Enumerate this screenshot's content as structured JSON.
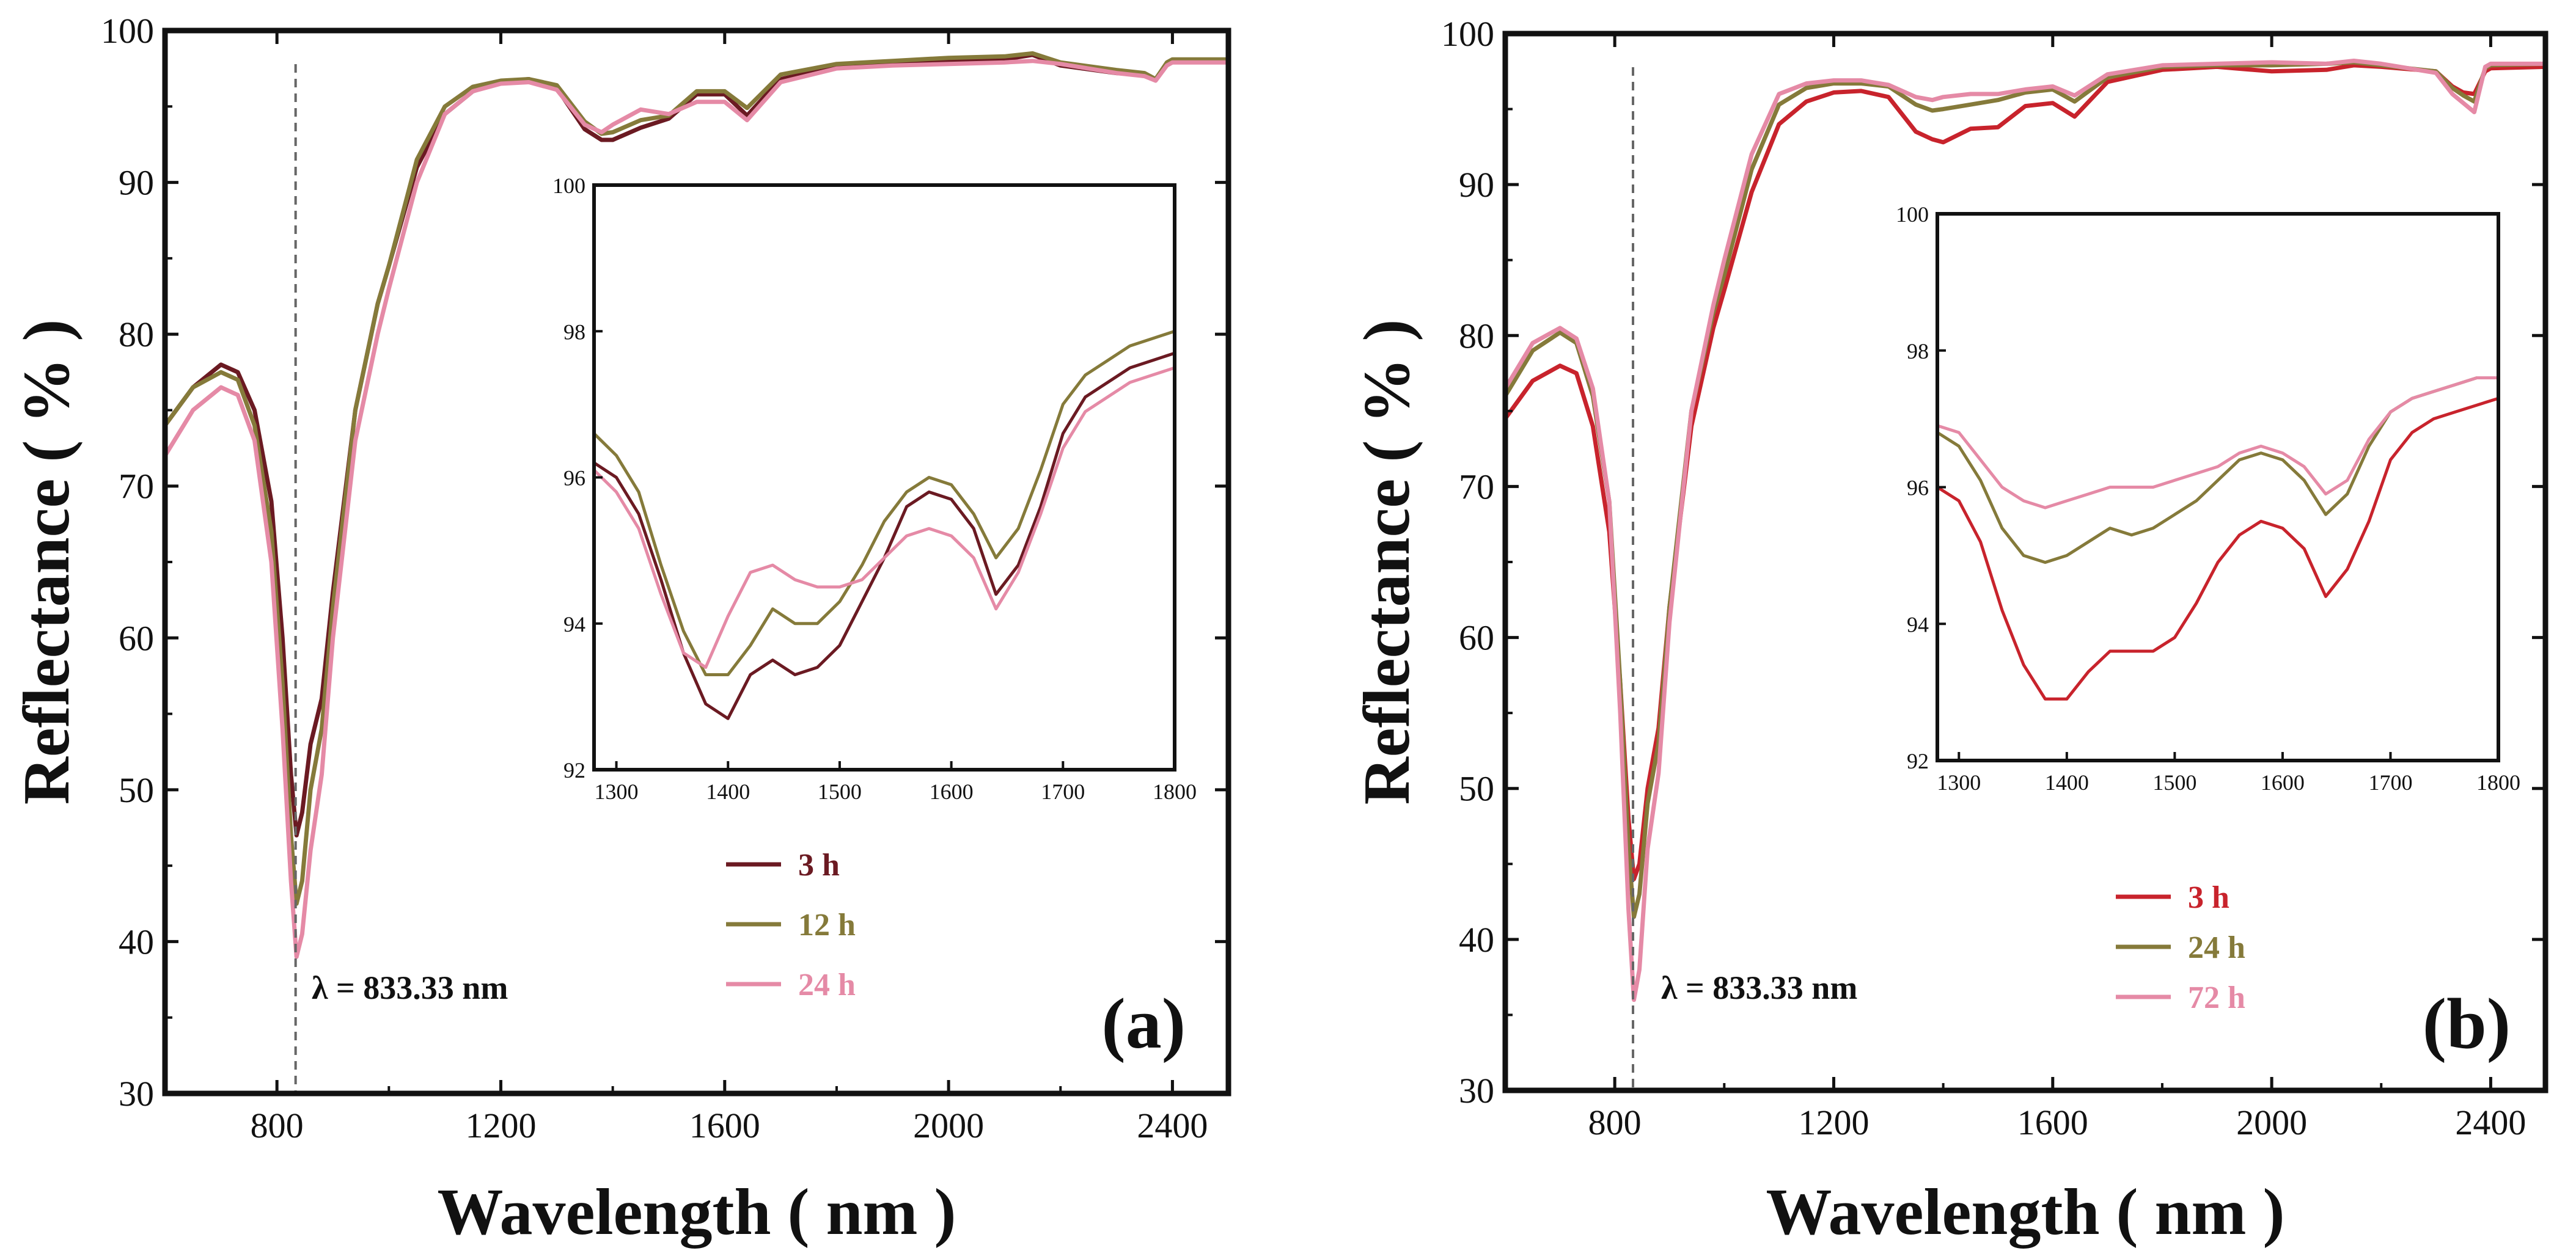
{
  "chart_data": [
    {
      "type": "line",
      "panel_label": "(a)",
      "xlabel": "Wavelength ( nm )",
      "ylabel": "Reflectance ( % )",
      "xlim": [
        600,
        2500
      ],
      "ylim": [
        30,
        100
      ],
      "xticks": [
        800,
        1200,
        1600,
        2000,
        2400
      ],
      "yticks": [
        30,
        40,
        50,
        60,
        70,
        80,
        90,
        100
      ],
      "annotation": "λ = 833.33 nm",
      "reference_line_x": 833.33,
      "legend": [
        "3 h",
        "12 h",
        "24 h"
      ],
      "series": [
        {
          "name": "3 h",
          "color": "#6b1a22",
          "x": [
            600,
            650,
            700,
            730,
            760,
            790,
            810,
            825,
            835,
            845,
            860,
            880,
            900,
            940,
            980,
            1000,
            1050,
            1100,
            1150,
            1200,
            1250,
            1300,
            1350,
            1380,
            1400,
            1450,
            1500,
            1550,
            1600,
            1640,
            1700,
            1800,
            1900,
            2000,
            2100,
            2150,
            2200,
            2300,
            2350,
            2370,
            2390,
            2400,
            2500
          ],
          "y": [
            74,
            76.5,
            78,
            77.5,
            75,
            69,
            60,
            51,
            47,
            48.5,
            53,
            56,
            63,
            75,
            82,
            84.5,
            91,
            94.5,
            96,
            96.6,
            96.8,
            96.2,
            93.5,
            92.8,
            92.8,
            93.6,
            94.2,
            95.8,
            95.8,
            94.4,
            96.8,
            97.6,
            97.8,
            98,
            98.1,
            98.4,
            97.7,
            97.2,
            97.1,
            96.8,
            97.8,
            98,
            98
          ]
        },
        {
          "name": "12 h",
          "color": "#857a3a",
          "x": [
            600,
            650,
            700,
            730,
            760,
            790,
            810,
            825,
            835,
            845,
            860,
            880,
            900,
            940,
            980,
            1000,
            1050,
            1100,
            1150,
            1200,
            1250,
            1300,
            1350,
            1380,
            1400,
            1450,
            1500,
            1550,
            1600,
            1640,
            1700,
            1800,
            1900,
            2000,
            2100,
            2150,
            2200,
            2300,
            2350,
            2370,
            2390,
            2400,
            2500
          ],
          "y": [
            74,
            76.5,
            77.5,
            77,
            74,
            67,
            57,
            47,
            42.5,
            44,
            50,
            54,
            62,
            75,
            82,
            84.5,
            91.5,
            95,
            96.3,
            96.7,
            96.8,
            96.4,
            94,
            93.2,
            93.3,
            94.1,
            94.4,
            96,
            96,
            94.9,
            97.1,
            97.8,
            98,
            98.2,
            98.3,
            98.5,
            97.9,
            97.4,
            97.2,
            96.8,
            97.9,
            98.1,
            98.1
          ]
        },
        {
          "name": "24 h",
          "color": "#e58aa6",
          "x": [
            600,
            650,
            700,
            730,
            760,
            790,
            810,
            825,
            835,
            845,
            860,
            880,
            900,
            940,
            980,
            1000,
            1050,
            1100,
            1150,
            1200,
            1250,
            1300,
            1350,
            1380,
            1400,
            1450,
            1500,
            1550,
            1600,
            1640,
            1700,
            1800,
            1900,
            2000,
            2100,
            2150,
            2200,
            2300,
            2350,
            2370,
            2390,
            2400,
            2500
          ],
          "y": [
            72,
            75,
            76.5,
            76,
            73,
            65,
            54,
            44,
            39,
            40.5,
            46,
            51,
            60,
            73,
            80,
            83,
            90,
            94.5,
            96,
            96.5,
            96.6,
            96.1,
            93.8,
            93.3,
            93.8,
            94.8,
            94.5,
            95.3,
            95.3,
            94.1,
            96.6,
            97.5,
            97.7,
            97.8,
            97.9,
            98,
            97.8,
            97.2,
            97,
            96.7,
            97.7,
            97.9,
            97.9
          ]
        }
      ],
      "inset": {
        "xlim": [
          1280,
          1800
        ],
        "ylim": [
          92,
          100
        ],
        "xticks": [
          1300,
          1400,
          1500,
          1600,
          1700,
          1800
        ],
        "yticks": [
          92,
          94,
          96,
          98,
          100
        ],
        "series": [
          {
            "name": "3 h",
            "x": [
              1280,
              1300,
              1320,
              1340,
              1360,
              1380,
              1400,
              1420,
              1440,
              1460,
              1480,
              1500,
              1520,
              1540,
              1560,
              1580,
              1600,
              1620,
              1640,
              1660,
              1680,
              1700,
              1720,
              1740,
              1760,
              1780,
              1800
            ],
            "y": [
              96.2,
              96,
              95.5,
              94.6,
              93.6,
              92.9,
              92.7,
              93.3,
              93.5,
              93.3,
              93.4,
              93.7,
              94.3,
              94.9,
              95.6,
              95.8,
              95.7,
              95.3,
              94.4,
              94.8,
              95.6,
              96.6,
              97.1,
              97.3,
              97.5,
              97.6,
              97.7
            ]
          },
          {
            "name": "12 h",
            "x": [
              1280,
              1300,
              1320,
              1340,
              1360,
              1380,
              1400,
              1420,
              1440,
              1460,
              1480,
              1500,
              1520,
              1540,
              1560,
              1580,
              1600,
              1620,
              1640,
              1660,
              1680,
              1700,
              1720,
              1740,
              1760,
              1780,
              1800
            ],
            "y": [
              96.6,
              96.3,
              95.8,
              94.8,
              93.9,
              93.3,
              93.3,
              93.7,
              94.2,
              94.0,
              94.0,
              94.3,
              94.8,
              95.4,
              95.8,
              96.0,
              95.9,
              95.5,
              94.9,
              95.3,
              96.1,
              97.0,
              97.4,
              97.6,
              97.8,
              97.9,
              98.0
            ]
          },
          {
            "name": "24 h",
            "x": [
              1280,
              1300,
              1320,
              1340,
              1360,
              1380,
              1400,
              1420,
              1440,
              1460,
              1480,
              1500,
              1520,
              1540,
              1560,
              1580,
              1600,
              1620,
              1640,
              1660,
              1680,
              1700,
              1720,
              1740,
              1760,
              1780,
              1800
            ],
            "y": [
              96.1,
              95.8,
              95.3,
              94.4,
              93.6,
              93.4,
              94.1,
              94.7,
              94.8,
              94.6,
              94.5,
              94.5,
              94.6,
              94.9,
              95.2,
              95.3,
              95.2,
              94.9,
              94.2,
              94.7,
              95.5,
              96.4,
              96.9,
              97.1,
              97.3,
              97.4,
              97.5
            ]
          }
        ]
      }
    },
    {
      "type": "line",
      "panel_label": "(b)",
      "xlabel": "Wavelength ( nm )",
      "ylabel": "Reflectance ( % )",
      "xlim": [
        600,
        2500
      ],
      "ylim": [
        30,
        100
      ],
      "xticks": [
        800,
        1200,
        1600,
        2000,
        2400
      ],
      "yticks": [
        30,
        40,
        50,
        60,
        70,
        80,
        90,
        100
      ],
      "annotation": "λ = 833.33 nm",
      "reference_line_x": 833.33,
      "legend": [
        "3 h",
        "24 h",
        "72 h"
      ],
      "series": [
        {
          "name": "3 h",
          "color": "#c8232c",
          "x": [
            600,
            650,
            700,
            730,
            760,
            790,
            810,
            825,
            835,
            845,
            860,
            880,
            900,
            940,
            980,
            1000,
            1050,
            1100,
            1150,
            1200,
            1250,
            1300,
            1350,
            1380,
            1400,
            1450,
            1500,
            1550,
            1600,
            1640,
            1700,
            1800,
            1900,
            2000,
            2100,
            2150,
            2200,
            2300,
            2330,
            2350,
            2370,
            2390,
            2400,
            2500
          ],
          "y": [
            74.5,
            77,
            78,
            77.5,
            74,
            67,
            57,
            48,
            44,
            45,
            50,
            54,
            62,
            74,
            80.5,
            83,
            89.5,
            94,
            95.5,
            96.1,
            96.2,
            95.8,
            93.5,
            93,
            92.8,
            93.7,
            93.8,
            95.2,
            95.4,
            94.5,
            96.8,
            97.6,
            97.8,
            97.5,
            97.6,
            97.9,
            97.8,
            97.5,
            96.5,
            96.1,
            96,
            97.5,
            97.7,
            97.8
          ]
        },
        {
          "name": "24 h",
          "color": "#857a3a",
          "x": [
            600,
            650,
            700,
            730,
            760,
            790,
            810,
            825,
            835,
            845,
            860,
            880,
            900,
            940,
            980,
            1000,
            1050,
            1100,
            1150,
            1200,
            1250,
            1300,
            1350,
            1380,
            1400,
            1450,
            1500,
            1550,
            1600,
            1640,
            1700,
            1800,
            1900,
            2000,
            2100,
            2150,
            2200,
            2300,
            2330,
            2350,
            2370,
            2390,
            2400,
            2500
          ],
          "y": [
            76,
            79,
            80.2,
            79.5,
            76,
            69,
            57,
            46,
            41.5,
            43,
            49,
            53,
            62,
            75,
            81.5,
            84,
            91,
            95.3,
            96.4,
            96.7,
            96.7,
            96.5,
            95.3,
            94.9,
            95.0,
            95.3,
            95.6,
            96.1,
            96.3,
            95.5,
            97.1,
            97.8,
            97.9,
            97.9,
            98,
            98.1,
            97.9,
            97.5,
            96.4,
            95.9,
            95.5,
            97.7,
            97.9,
            98
          ]
        },
        {
          "name": "72 h",
          "color": "#e58aa6",
          "x": [
            600,
            650,
            700,
            730,
            760,
            790,
            810,
            825,
            835,
            845,
            860,
            880,
            900,
            940,
            980,
            1000,
            1050,
            1100,
            1150,
            1200,
            1250,
            1300,
            1350,
            1380,
            1400,
            1450,
            1500,
            1550,
            1600,
            1640,
            1700,
            1800,
            1900,
            2000,
            2100,
            2150,
            2200,
            2300,
            2330,
            2350,
            2370,
            2390,
            2400,
            2500
          ],
          "y": [
            76.5,
            79.5,
            80.5,
            79.8,
            76.5,
            69,
            55,
            42,
            36,
            38,
            46,
            51,
            61,
            75,
            82,
            85,
            92,
            96,
            96.7,
            96.9,
            96.9,
            96.6,
            95.8,
            95.6,
            95.8,
            96,
            96,
            96.3,
            96.5,
            95.9,
            97.3,
            97.9,
            98,
            98.1,
            98,
            98.2,
            98,
            97.4,
            96,
            95.4,
            94.8,
            97.8,
            98,
            98
          ]
        }
      ],
      "inset": {
        "xlim": [
          1280,
          1800
        ],
        "ylim": [
          92,
          100
        ],
        "xticks": [
          1300,
          1400,
          1500,
          1600,
          1700,
          1800
        ],
        "yticks": [
          92,
          94,
          96,
          98,
          100
        ],
        "series": [
          {
            "name": "3 h",
            "x": [
              1280,
              1300,
              1320,
              1340,
              1360,
              1380,
              1400,
              1420,
              1440,
              1460,
              1480,
              1500,
              1520,
              1540,
              1560,
              1580,
              1600,
              1620,
              1640,
              1660,
              1680,
              1700,
              1720,
              1740,
              1760,
              1780,
              1800
            ],
            "y": [
              96.0,
              95.8,
              95.2,
              94.2,
              93.4,
              92.9,
              92.9,
              93.3,
              93.6,
              93.6,
              93.6,
              93.8,
              94.3,
              94.9,
              95.3,
              95.5,
              95.4,
              95.1,
              94.4,
              94.8,
              95.5,
              96.4,
              96.8,
              97.0,
              97.1,
              97.2,
              97.3
            ]
          },
          {
            "name": "24 h",
            "x": [
              1280,
              1300,
              1320,
              1340,
              1360,
              1380,
              1400,
              1420,
              1440,
              1460,
              1480,
              1500,
              1520,
              1540,
              1560,
              1580,
              1600,
              1620,
              1640,
              1660,
              1680,
              1700,
              1720,
              1740,
              1760,
              1780,
              1800
            ],
            "y": [
              96.8,
              96.6,
              96.1,
              95.4,
              95.0,
              94.9,
              95.0,
              95.2,
              95.4,
              95.3,
              95.4,
              95.6,
              95.8,
              96.1,
              96.4,
              96.5,
              96.4,
              96.1,
              95.6,
              95.9,
              96.6,
              97.1,
              97.3,
              97.4,
              97.5,
              97.6,
              97.6
            ]
          },
          {
            "name": "72 h",
            "x": [
              1280,
              1300,
              1320,
              1340,
              1360,
              1380,
              1400,
              1420,
              1440,
              1460,
              1480,
              1500,
              1520,
              1540,
              1560,
              1580,
              1600,
              1620,
              1640,
              1660,
              1680,
              1700,
              1720,
              1740,
              1760,
              1780,
              1800
            ],
            "y": [
              96.9,
              96.8,
              96.4,
              96.0,
              95.8,
              95.7,
              95.8,
              95.9,
              96.0,
              96.0,
              96.0,
              96.1,
              96.2,
              96.3,
              96.5,
              96.6,
              96.5,
              96.3,
              95.9,
              96.1,
              96.7,
              97.1,
              97.3,
              97.4,
              97.5,
              97.6,
              97.6
            ]
          }
        ]
      }
    }
  ]
}
